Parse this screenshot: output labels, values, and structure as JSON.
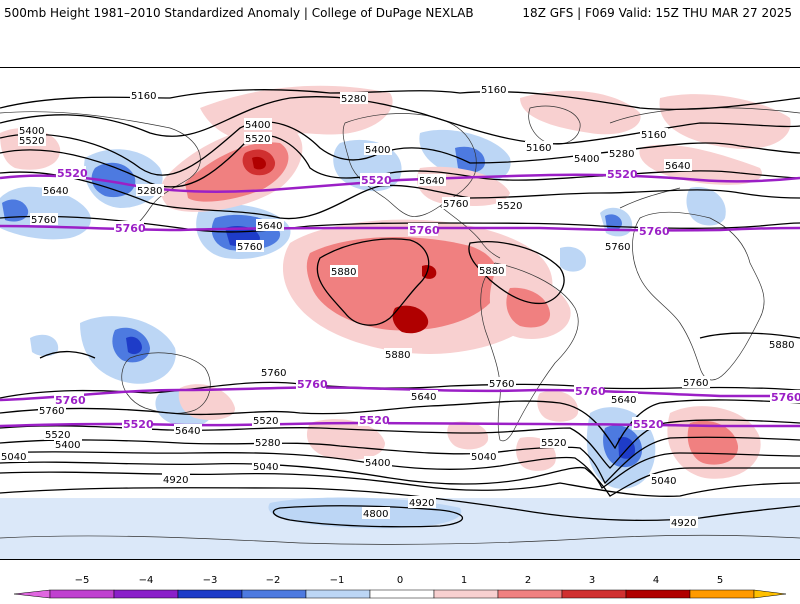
{
  "header": {
    "title": "500mb Height 1981–2010 Standardized Anomaly | College of DuPage NEXLAB",
    "model_info": "18Z GFS | F069 Valid: 15Z THU MAR 27 2025"
  },
  "colors": {
    "neg5": "#e066e0",
    "neg4": "#8a1fc9",
    "neg3": "#1e3cc8",
    "neg2": "#4d7ae0",
    "neg1": "#bcd6f5",
    "zero": "#ffffff",
    "pos1": "#f8d0d0",
    "pos2": "#f08080",
    "pos3": "#d03030",
    "pos4": "#b00000",
    "pos5": "#ff9a00",
    "highlight": "#9b1fc6"
  },
  "colorbar": {
    "ticks": [
      "−5",
      "−4",
      "−3",
      "−2",
      "−1",
      "0",
      "1",
      "2",
      "3",
      "4",
      "5"
    ]
  },
  "contour_labels": {
    "l5160a": "5160",
    "l5160b": "5160",
    "l5160c": "5160",
    "l5160d": "5160",
    "l5280a": "5280",
    "l5280b": "5280",
    "l5280c": "5280",
    "l5280d": "5280",
    "l5400a": "5400",
    "l5400b": "5400",
    "l5400c": "5400",
    "l5400d": "5400",
    "l5400e": "5400",
    "l5400f": "5400",
    "l5520a": "5520",
    "l5520b": "5520",
    "l5520c": "5520",
    "l5520d": "5520",
    "l5520e": "5520",
    "l5520f": "5520",
    "l5640a": "5640",
    "l5640b": "5640",
    "l5640c": "5640",
    "l5640d": "5640",
    "l5640e": "5640",
    "l5640f": "5640",
    "l5640g": "5640",
    "l5760a": "5760",
    "l5760b": "5760",
    "l5760c": "5760",
    "l5760d": "5760",
    "l5760e": "5760",
    "l5760f": "5760",
    "l5760g": "5760",
    "l5760h": "5760",
    "l5880a": "5880",
    "l5880b": "5880",
    "l5880c": "5880",
    "l5880d": "5880",
    "l5040a": "5040",
    "l5040b": "5040",
    "l5040c": "5040",
    "l5040d": "5040",
    "l4920a": "4920",
    "l4920b": "4920",
    "l4920c": "4920",
    "l4800": "4800"
  },
  "highlight_labels": {
    "h5520a": "5520",
    "h5520b": "5520",
    "h5520c": "5520",
    "h5520d": "5520",
    "h5520e": "5520",
    "h5520f": "5520",
    "h5760a": "5760",
    "h5760b": "5760",
    "h5760c": "5760",
    "h5760d": "5760",
    "h5760e": "5760",
    "h5760f": "5760",
    "h5760g": "5760"
  }
}
